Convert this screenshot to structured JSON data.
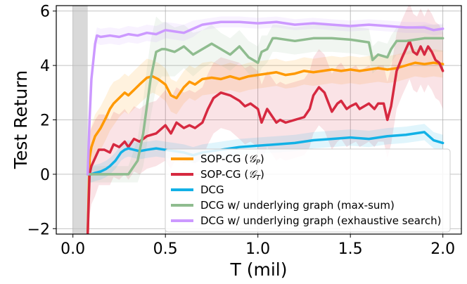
{
  "chart_data": {
    "type": "line",
    "title": "",
    "xlabel": "T (mil)",
    "ylabel": "Test Return",
    "xlim": [
      -0.09,
      2.1
    ],
    "ylim": [
      -2.2,
      6.2
    ],
    "xticks": [
      0.0,
      0.5,
      1.0,
      1.5,
      2.0
    ],
    "xtick_labels": [
      "0.0",
      "0.5",
      "1.0",
      "1.5",
      "2.0"
    ],
    "yticks": [
      -2,
      0,
      2,
      4,
      6
    ],
    "ytick_labels": [
      "−2",
      "0",
      "2",
      "4",
      "6"
    ],
    "grid": true,
    "legend_position": "bottom-right",
    "warmup_band": {
      "x0": 0.0,
      "x1": 0.08,
      "color": "#bfbfbf"
    },
    "series": [
      {
        "name": "SOP-CG (𝒢ₚ)",
        "label_main": "SOP-CG (",
        "label_script": "𝒢",
        "label_sub": "P",
        "label_close": ")",
        "color": "#ff9900",
        "x": [
          0.08,
          0.09,
          0.1,
          0.12,
          0.15,
          0.18,
          0.2,
          0.22,
          0.25,
          0.28,
          0.3,
          0.33,
          0.36,
          0.4,
          0.43,
          0.46,
          0.5,
          0.53,
          0.56,
          0.6,
          0.63,
          0.66,
          0.7,
          0.75,
          0.8,
          0.85,
          0.9,
          0.95,
          1.0,
          1.05,
          1.1,
          1.15,
          1.2,
          1.25,
          1.3,
          1.35,
          1.4,
          1.45,
          1.5,
          1.55,
          1.6,
          1.65,
          1.7,
          1.75,
          1.8,
          1.85,
          1.9,
          1.95,
          2.0
        ],
        "y": [
          -2.2,
          0.6,
          1.0,
          1.4,
          1.7,
          2.1,
          2.4,
          2.6,
          2.8,
          3.0,
          2.9,
          3.1,
          3.3,
          3.55,
          3.6,
          3.5,
          3.3,
          2.9,
          2.8,
          3.2,
          3.4,
          3.3,
          3.5,
          3.55,
          3.5,
          3.6,
          3.5,
          3.6,
          3.65,
          3.7,
          3.75,
          3.65,
          3.7,
          3.8,
          3.75,
          3.8,
          3.85,
          3.8,
          3.85,
          3.8,
          3.85,
          3.9,
          3.85,
          3.9,
          4.0,
          4.1,
          4.05,
          4.1,
          4.05
        ],
        "band": [
          1.0,
          0.9,
          0.8,
          0.8,
          0.8,
          0.8,
          0.8,
          0.8,
          0.7,
          0.7,
          0.7,
          0.7,
          0.7,
          0.7,
          0.6,
          0.6,
          0.6,
          0.6,
          0.6,
          0.6,
          0.6,
          0.6,
          0.6,
          0.6,
          0.5,
          0.5,
          0.5,
          0.5,
          0.5,
          0.5,
          0.5,
          0.5,
          0.5,
          0.5,
          0.5,
          0.5,
          0.5,
          0.5,
          0.5,
          0.5,
          0.5,
          0.5,
          0.5,
          0.5,
          0.5,
          0.5,
          0.5,
          0.5,
          0.5
        ]
      },
      {
        "name": "SOP-CG (𝒢ₜ)",
        "label_main": "SOP-CG (",
        "label_script": "𝒢",
        "label_sub": "T",
        "label_close": ")",
        "color": "#d62940",
        "x": [
          0.08,
          0.09,
          0.1,
          0.12,
          0.14,
          0.17,
          0.2,
          0.22,
          0.25,
          0.28,
          0.3,
          0.33,
          0.36,
          0.4,
          0.45,
          0.5,
          0.53,
          0.56,
          0.6,
          0.63,
          0.66,
          0.7,
          0.73,
          0.76,
          0.8,
          0.85,
          0.9,
          0.93,
          0.96,
          1.0,
          1.02,
          1.05,
          1.08,
          1.1,
          1.12,
          1.15,
          1.2,
          1.25,
          1.28,
          1.3,
          1.33,
          1.36,
          1.4,
          1.43,
          1.45,
          1.48,
          1.5,
          1.53,
          1.55,
          1.6,
          1.63,
          1.65,
          1.68,
          1.7,
          1.72,
          1.75,
          1.78,
          1.8,
          1.82,
          1.84,
          1.86,
          1.88,
          1.9,
          1.92,
          1.94,
          1.96,
          1.98,
          2.0
        ],
        "y": [
          -2.2,
          0.0,
          0.3,
          0.6,
          0.9,
          0.9,
          0.8,
          1.1,
          1.0,
          1.2,
          1.0,
          1.3,
          1.2,
          1.4,
          1.5,
          1.8,
          1.5,
          1.9,
          1.7,
          1.8,
          1.7,
          1.9,
          2.4,
          2.8,
          3.0,
          2.9,
          2.7,
          2.5,
          2.6,
          2.4,
          1.9,
          2.4,
          2.1,
          1.9,
          2.0,
          1.9,
          2.0,
          2.1,
          2.4,
          2.9,
          3.2,
          3.0,
          2.3,
          2.6,
          2.7,
          2.4,
          2.5,
          2.6,
          2.4,
          2.6,
          2.4,
          2.6,
          2.6,
          2.0,
          2.5,
          3.8,
          4.3,
          4.6,
          4.9,
          4.5,
          4.4,
          4.7,
          4.4,
          4.7,
          4.5,
          4.2,
          4.1,
          3.8
        ],
        "band": [
          1.5,
          1.5,
          1.4,
          1.4,
          1.3,
          1.3,
          1.2,
          1.2,
          1.2,
          1.2,
          1.2,
          1.2,
          1.2,
          1.2,
          1.2,
          1.3,
          1.3,
          1.3,
          1.3,
          1.3,
          1.3,
          1.3,
          1.3,
          1.3,
          1.3,
          1.3,
          1.4,
          1.4,
          1.4,
          1.4,
          1.4,
          1.4,
          1.4,
          1.4,
          1.4,
          1.4,
          1.4,
          1.4,
          1.4,
          1.4,
          1.4,
          1.4,
          1.4,
          1.4,
          1.4,
          1.4,
          1.4,
          1.4,
          1.4,
          1.4,
          1.4,
          1.4,
          1.4,
          1.4,
          1.4,
          1.4,
          1.4,
          1.4,
          1.4,
          1.4,
          1.4,
          1.4,
          1.4,
          1.4,
          1.4,
          1.4,
          1.4,
          1.4
        ]
      },
      {
        "name": "DCG",
        "label_main": "DCG",
        "color": "#12b1e6",
        "x": [
          0.08,
          0.1,
          0.12,
          0.15,
          0.18,
          0.2,
          0.23,
          0.26,
          0.28,
          0.3,
          0.33,
          0.36,
          0.4,
          0.45,
          0.5,
          0.55,
          0.6,
          0.65,
          0.7,
          0.8,
          0.9,
          1.0,
          1.1,
          1.2,
          1.3,
          1.4,
          1.5,
          1.6,
          1.7,
          1.8,
          1.9,
          1.95,
          2.0
        ],
        "y": [
          0.0,
          0.0,
          0.05,
          0.1,
          0.2,
          0.3,
          0.5,
          0.8,
          0.9,
          0.95,
          0.9,
          0.85,
          0.9,
          0.95,
          0.9,
          0.85,
          0.8,
          0.7,
          0.8,
          0.9,
          1.0,
          1.05,
          1.1,
          1.15,
          1.25,
          1.3,
          1.35,
          1.3,
          1.4,
          1.45,
          1.55,
          1.25,
          1.15
        ],
        "band": [
          0.3,
          0.3,
          0.3,
          0.3,
          0.3,
          0.3,
          0.3,
          0.3,
          0.3,
          0.3,
          0.3,
          0.3,
          0.3,
          0.3,
          0.3,
          0.3,
          0.3,
          0.3,
          0.3,
          0.3,
          0.3,
          0.3,
          0.3,
          0.3,
          0.3,
          0.3,
          0.3,
          0.3,
          0.3,
          0.3,
          0.3,
          0.3,
          0.3
        ]
      },
      {
        "name": "DCG w/ underlying graph (max-sum)",
        "label_main": "DCG w/ underlying graph (max-sum)",
        "color": "#8fbc8f",
        "x": [
          0.08,
          0.3,
          0.35,
          0.38,
          0.4,
          0.42,
          0.45,
          0.48,
          0.5,
          0.55,
          0.6,
          0.65,
          0.7,
          0.75,
          0.8,
          0.85,
          0.9,
          0.95,
          1.0,
          1.02,
          1.05,
          1.08,
          1.1,
          1.2,
          1.3,
          1.4,
          1.5,
          1.6,
          1.62,
          1.65,
          1.7,
          1.72,
          1.75,
          1.8,
          1.85,
          1.9,
          1.95,
          2.0
        ],
        "y": [
          0.0,
          0.0,
          0.5,
          1.5,
          2.5,
          3.5,
          4.5,
          4.6,
          4.6,
          4.5,
          4.7,
          4.4,
          4.6,
          4.8,
          4.6,
          4.4,
          4.7,
          4.3,
          4.1,
          4.5,
          4.6,
          5.0,
          5.0,
          4.9,
          5.0,
          5.0,
          4.95,
          4.85,
          4.2,
          4.4,
          4.3,
          4.6,
          4.9,
          4.9,
          4.95,
          5.0,
          5.0,
          5.0
        ],
        "band": [
          0.3,
          0.3,
          0.8,
          1.2,
          1.4,
          1.4,
          1.3,
          1.0,
          1.0,
          0.9,
          0.8,
          0.8,
          0.7,
          0.7,
          0.6,
          0.6,
          0.6,
          0.6,
          0.6,
          0.6,
          0.5,
          0.5,
          0.5,
          0.5,
          0.5,
          0.5,
          0.5,
          0.5,
          0.5,
          0.5,
          0.5,
          0.5,
          0.5,
          0.5,
          0.5,
          0.5,
          0.5,
          0.5
        ]
      },
      {
        "name": "DCG w/ underlying graph (exhaustive search)",
        "label_main": "DCG w/ underlying graph (exhaustive search)",
        "color": "#cc99ff",
        "x": [
          0.08,
          0.09,
          0.1,
          0.12,
          0.13,
          0.15,
          0.2,
          0.25,
          0.3,
          0.35,
          0.4,
          0.45,
          0.5,
          0.55,
          0.6,
          0.65,
          0.7,
          0.75,
          0.8,
          0.9,
          1.0,
          1.1,
          1.2,
          1.3,
          1.4,
          1.5,
          1.6,
          1.7,
          1.8,
          1.9,
          1.95,
          2.0
        ],
        "y": [
          0.0,
          2.0,
          3.5,
          4.8,
          5.1,
          5.05,
          5.1,
          5.05,
          5.15,
          5.1,
          5.2,
          5.15,
          5.3,
          5.25,
          5.2,
          5.35,
          5.5,
          5.55,
          5.6,
          5.6,
          5.55,
          5.6,
          5.5,
          5.55,
          5.5,
          5.45,
          5.5,
          5.45,
          5.4,
          5.4,
          5.3,
          5.35
        ],
        "band": [
          0.5,
          0.4,
          0.4,
          0.3,
          0.3,
          0.3,
          0.3,
          0.3,
          0.3,
          0.3,
          0.3,
          0.3,
          0.3,
          0.3,
          0.3,
          0.3,
          0.2,
          0.2,
          0.2,
          0.2,
          0.2,
          0.2,
          0.2,
          0.2,
          0.2,
          0.2,
          0.2,
          0.2,
          0.2,
          0.2,
          0.2,
          0.2
        ]
      }
    ]
  }
}
